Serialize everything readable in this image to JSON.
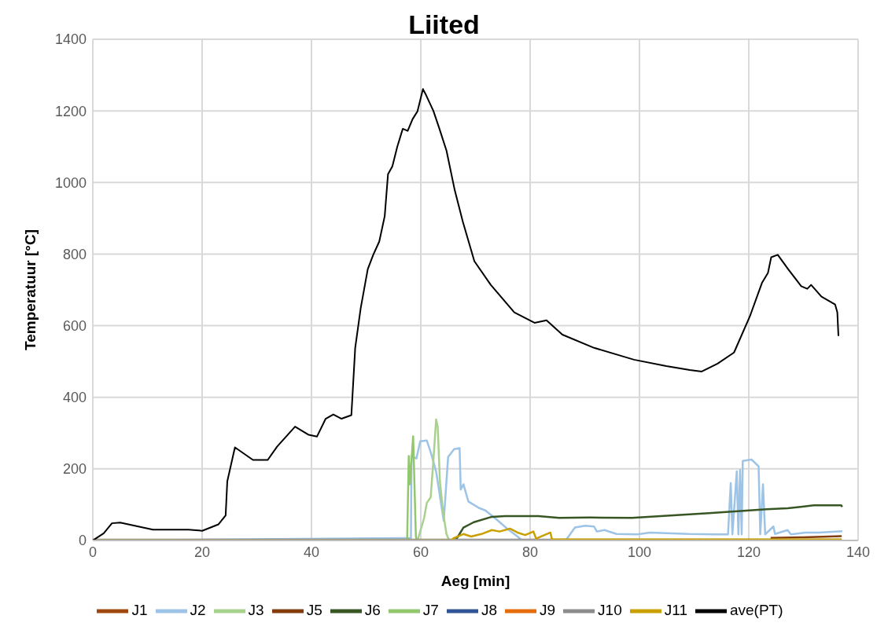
{
  "chart_data": {
    "type": "line",
    "title": "Liited",
    "xlabel": "Aeg [min]",
    "ylabel": "Temperatuur [°C]",
    "xlim": [
      0,
      140
    ],
    "xticks": [
      0,
      20,
      40,
      60,
      80,
      100,
      120,
      140
    ],
    "ylim": [
      0,
      1400
    ],
    "yticks": [
      0,
      200,
      400,
      600,
      800,
      1000,
      1200,
      1400
    ],
    "grid": true,
    "legend": "bottom",
    "marker": "none",
    "line_style": "solid",
    "series": [
      {
        "name": "J1",
        "color": "#9e480e"
      },
      {
        "name": "J2",
        "color": "#9dc3e6",
        "x": [
          0,
          58.2,
          58.3,
          59.2,
          59.9,
          61.1,
          61.8,
          62.8,
          64.2,
          65.0,
          66.1,
          67.1,
          67.3,
          67.8,
          68.7,
          70.6,
          71.8,
          73.9,
          75.8,
          77.7,
          78.5,
          86.5,
          87.2,
          88.2,
          90.1,
          91.7,
          92.2,
          93.6,
          95.8,
          99.6,
          101.9,
          109.1,
          113.8,
          116.2,
          116.7,
          117.0,
          117.8,
          118.1,
          118.4,
          118.7,
          118.9,
          120.5,
          121.8,
          122.1,
          122.6,
          123.0,
          124.5,
          124.8,
          127.1,
          127.7,
          130.4,
          132.8,
          137.1
        ],
        "values": [
          0,
          7,
          236,
          229,
          277,
          279,
          247,
          193,
          55,
          233,
          255,
          258,
          142,
          157,
          109,
          91,
          84,
          58,
          33,
          11,
          0,
          0,
          15,
          36,
          41,
          39,
          25,
          29,
          18,
          17,
          22,
          18,
          17,
          17,
          160,
          17,
          193,
          17,
          197,
          17,
          222,
          226,
          207,
          17,
          157,
          17,
          39,
          18,
          29,
          17,
          22,
          22,
          26
        ]
      },
      {
        "name": "J3",
        "color": "#a9d18e",
        "x": [
          59.4,
          60.6,
          61.1,
          61.8,
          62.3,
          62.8,
          63.1,
          63.5,
          64.1,
          64.7,
          65.2
        ],
        "values": [
          0,
          62,
          105,
          120,
          222,
          338,
          317,
          164,
          76,
          18,
          0
        ]
      },
      {
        "name": "J5",
        "color": "#843c0c",
        "x": [
          124,
          130,
          137
        ],
        "values": [
          7,
          9,
          12
        ]
      },
      {
        "name": "J6",
        "color": "#375623",
        "x": [
          0,
          66.3,
          66.8,
          67.8,
          69.7,
          73.0,
          75.4,
          81.5,
          85.3,
          91.0,
          98.6,
          112.7,
          123.3,
          127.1,
          131.9,
          136.9,
          137.1
        ],
        "values": [
          0,
          0,
          11,
          36,
          51,
          66,
          68,
          68,
          63,
          64,
          63,
          76,
          87,
          90,
          98,
          98,
          94
        ]
      },
      {
        "name": "J7",
        "color": "#92c76e",
        "x": [
          57.5,
          57.8,
          58.0,
          58.6,
          59.1,
          59.3
        ],
        "values": [
          0,
          236,
          157,
          291,
          11,
          0
        ]
      },
      {
        "name": "J8",
        "color": "#2f5597"
      },
      {
        "name": "J9",
        "color": "#e46c0a"
      },
      {
        "name": "J10",
        "color": "#8c8c8c",
        "x": [
          0,
          137
        ],
        "values": [
          2,
          2
        ]
      },
      {
        "name": "J11",
        "color": "#c9a000",
        "x": [
          0,
          65.5,
          66.1,
          67.8,
          69.2,
          71.1,
          73.0,
          74.4,
          76.3,
          77.7,
          79.1,
          80.6,
          81.1,
          83.7,
          84.0,
          87.3,
          137
        ],
        "values": [
          0,
          0,
          7,
          18,
          11,
          18,
          29,
          25,
          33,
          22,
          15,
          25,
          5,
          22,
          3,
          3,
          3
        ]
      },
      {
        "name": "ave(PT)",
        "color": "#000000",
        "x": [
          0,
          2,
          3.5,
          5,
          11,
          17.5,
          20,
          23,
          24.3,
          24.6,
          26,
          29.3,
          32,
          33.7,
          37,
          39.5,
          41,
          42.6,
          44,
          45.5,
          47.3,
          48,
          49,
          50.3,
          51.3,
          52.4,
          53.4,
          54,
          54.8,
          55.7,
          56.7,
          57.6,
          58.5,
          59.4,
          60.4,
          61,
          62.3,
          63.3,
          64.7,
          66.2,
          67.7,
          69.8,
          72.8,
          77.1,
          80.8,
          83,
          85.9,
          91.7,
          99,
          104.9,
          109.2,
          111.4,
          114.3,
          117.3,
          120.2,
          122.4,
          123.5,
          124.1,
          125.3,
          127.2,
          129.6,
          130.7,
          131.4,
          133.3,
          135.8,
          136.2,
          136.4
        ],
        "values": [
          0,
          20,
          48,
          50,
          30,
          30,
          27,
          45,
          70,
          165,
          260,
          225,
          225,
          262,
          318,
          295,
          290,
          340,
          352,
          340,
          350,
          538,
          648,
          758,
          798,
          835,
          906,
          1023,
          1045,
          1100,
          1150,
          1144,
          1177,
          1199,
          1261,
          1243,
          1200,
          1155,
          1089,
          979,
          890,
          780,
          714,
          637,
          608,
          615,
          575,
          538,
          505,
          487,
          476,
          472,
          494,
          525,
          626,
          719,
          747,
          791,
          798,
          758,
          710,
          703,
          714,
          681,
          659,
          637,
          571
        ]
      }
    ]
  }
}
